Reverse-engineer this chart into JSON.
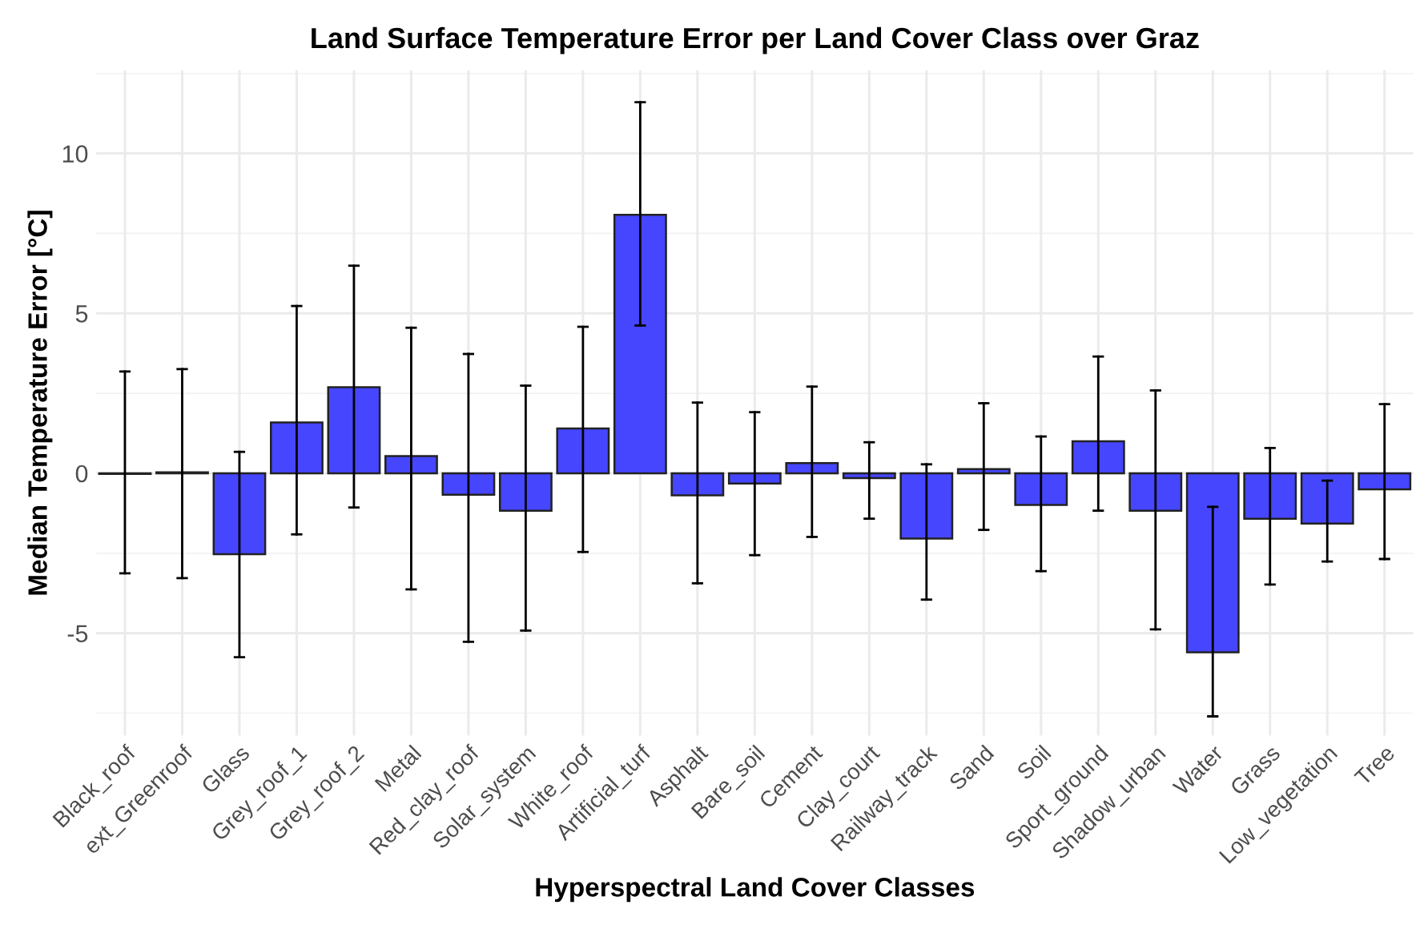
{
  "chart_data": {
    "type": "bar",
    "title": "Land Surface Temperature Error per Land Cover Class over Graz",
    "xlabel": "Hyperspectral Land Cover Classes",
    "ylabel": "Median Temperature Error [°C]",
    "categories": [
      "Black_roof",
      "ext_Greenroof",
      "Glass",
      "Grey_roof_1",
      "Grey_roof_2",
      "Metal",
      "Red_clay_roof",
      "Solar_system",
      "White_roof",
      "Artificial_turf",
      "Asphalt",
      "Bare_soil",
      "Cement",
      "Clay_court",
      "Railway_track",
      "Sand",
      "Soil",
      "Sport_ground",
      "Shadow_urban",
      "Water",
      "Grass",
      "Low_vegetation",
      "Tree"
    ],
    "values": [
      -0.02,
      0.03,
      -2.53,
      1.59,
      2.69,
      0.54,
      -0.67,
      -1.17,
      1.4,
      8.08,
      -0.69,
      -0.32,
      0.32,
      -0.15,
      -2.04,
      0.13,
      -0.99,
      1.0,
      -1.17,
      -5.6,
      -1.42,
      -1.57,
      -0.5
    ],
    "errors": [
      [
        -3.13,
        3.18
      ],
      [
        -3.28,
        3.26
      ],
      [
        -5.75,
        0.67
      ],
      [
        -1.91,
        5.23
      ],
      [
        -1.07,
        6.49
      ],
      [
        -3.63,
        4.55
      ],
      [
        -5.27,
        3.73
      ],
      [
        -4.92,
        2.74
      ],
      [
        -2.46,
        4.58
      ],
      [
        4.62,
        11.6
      ],
      [
        -3.44,
        2.21
      ],
      [
        -2.56,
        1.91
      ],
      [
        -1.99,
        2.71
      ],
      [
        -1.42,
        0.97
      ],
      [
        -3.95,
        0.28
      ],
      [
        -1.77,
        2.19
      ],
      [
        -3.06,
        1.15
      ],
      [
        -1.17,
        3.65
      ],
      [
        -4.88,
        2.59
      ],
      [
        -7.6,
        -1.05
      ],
      [
        -3.48,
        0.79
      ],
      [
        -2.76,
        -0.23
      ],
      [
        -2.68,
        2.16
      ]
    ],
    "color": "#4646ff",
    "ylim": [
      -8.2,
      12.6
    ],
    "yticks": [
      -5,
      0,
      5,
      10
    ],
    "grid": true
  }
}
